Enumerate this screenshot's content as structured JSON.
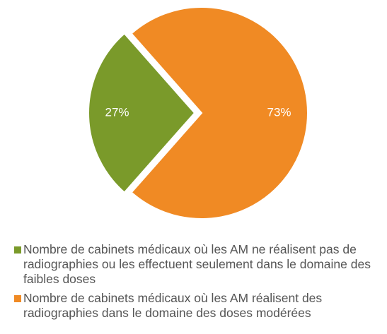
{
  "chart_data": {
    "type": "pie",
    "categories": [
      "Nombre de cabinets médicaux où les AM ne réalisent pas de radiographies ou les effectuent seulement dans le domaine des faibles doses",
      "Nombre de cabinets médicaux où les AM réalisent des radiographies dans le domaine des doses modérées"
    ],
    "values": [
      27,
      73
    ],
    "value_labels": [
      "27%",
      "73%"
    ],
    "colors": [
      "#7a9a2a",
      "#f08a24"
    ]
  }
}
